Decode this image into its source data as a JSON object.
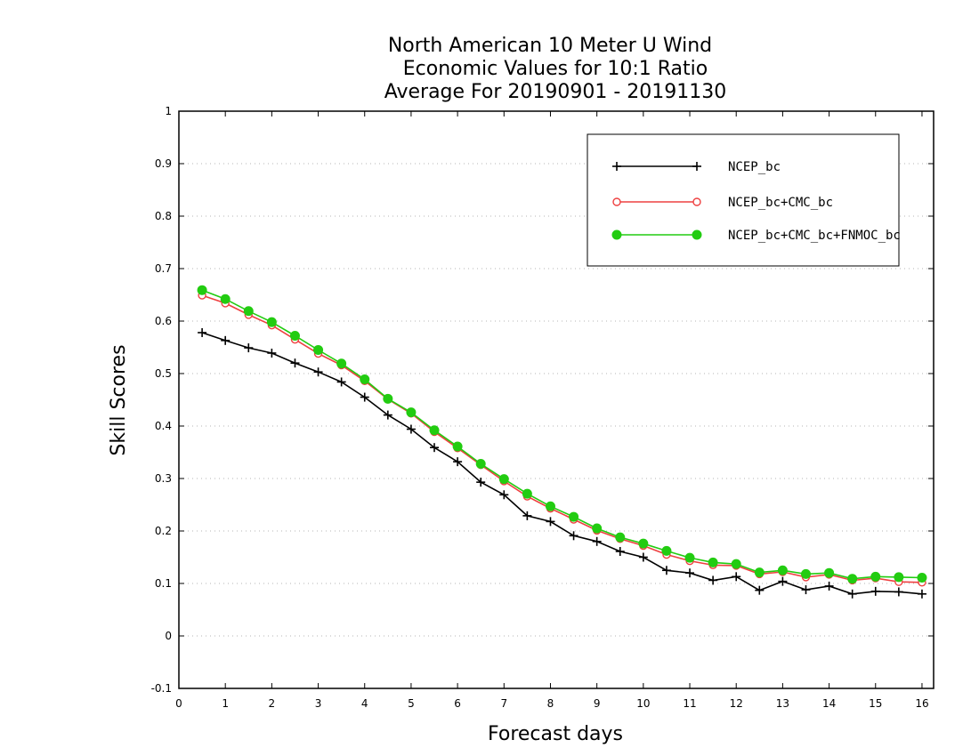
{
  "chart_data": {
    "type": "line",
    "title": [
      "North American 10 Meter U Wind",
      "Economic Values for 10:1 Ratio",
      "Average For 20190901 - 20191130"
    ],
    "xlabel": "Forecast days",
    "ylabel": "Skill Scores",
    "xlim": [
      0,
      16.25
    ],
    "ylim": [
      -0.1,
      1
    ],
    "xticks": [
      "0",
      "1",
      "2",
      "3",
      "4",
      "5",
      "6",
      "7",
      "8",
      "9",
      "10",
      "11",
      "12",
      "13",
      "14",
      "15",
      "16"
    ],
    "yticks": [
      "-0.1",
      "0",
      "0.1",
      "0.2",
      "0.3",
      "0.4",
      "0.5",
      "0.6",
      "0.7",
      "0.8",
      "0.9",
      "1"
    ],
    "grid": true,
    "legend_position": "top-right",
    "x": [
      0.5,
      1,
      1.5,
      2,
      2.5,
      3,
      3.5,
      4,
      4.5,
      5,
      5.5,
      6,
      6.5,
      7,
      7.5,
      8,
      8.5,
      9,
      9.5,
      10,
      10.5,
      11,
      11.5,
      12,
      12.5,
      13,
      13.5,
      14,
      14.5,
      15,
      15.5,
      16
    ],
    "series": [
      {
        "name": "NCEP_bc",
        "color": "#000000",
        "marker": "plus",
        "values": [
          0.578,
          0.563,
          0.549,
          0.539,
          0.52,
          0.503,
          0.484,
          0.455,
          0.421,
          0.394,
          0.359,
          0.332,
          0.293,
          0.269,
          0.229,
          0.218,
          0.191,
          0.18,
          0.161,
          0.15,
          0.125,
          0.12,
          0.106,
          0.113,
          0.087,
          0.104,
          0.088,
          0.095,
          0.08,
          0.085,
          0.084,
          0.08
        ]
      },
      {
        "name": "NCEP_bc+CMC_bc",
        "color": "#ee4040",
        "marker": "open-circle",
        "values": [
          0.649,
          0.634,
          0.612,
          0.592,
          0.565,
          0.538,
          0.516,
          0.486,
          0.451,
          0.424,
          0.389,
          0.358,
          0.326,
          0.295,
          0.266,
          0.243,
          0.222,
          0.201,
          0.185,
          0.172,
          0.155,
          0.143,
          0.135,
          0.134,
          0.118,
          0.122,
          0.112,
          0.117,
          0.106,
          0.11,
          0.103,
          0.102
        ]
      },
      {
        "name": "NCEP_bc+CMC_bc+FNMOC_bc",
        "color": "#22cc11",
        "marker": "filled-circle",
        "values": [
          0.659,
          0.642,
          0.619,
          0.598,
          0.572,
          0.545,
          0.519,
          0.489,
          0.452,
          0.426,
          0.392,
          0.361,
          0.328,
          0.299,
          0.271,
          0.247,
          0.227,
          0.205,
          0.188,
          0.176,
          0.162,
          0.149,
          0.14,
          0.137,
          0.121,
          0.125,
          0.118,
          0.12,
          0.109,
          0.113,
          0.112,
          0.111
        ]
      }
    ]
  }
}
